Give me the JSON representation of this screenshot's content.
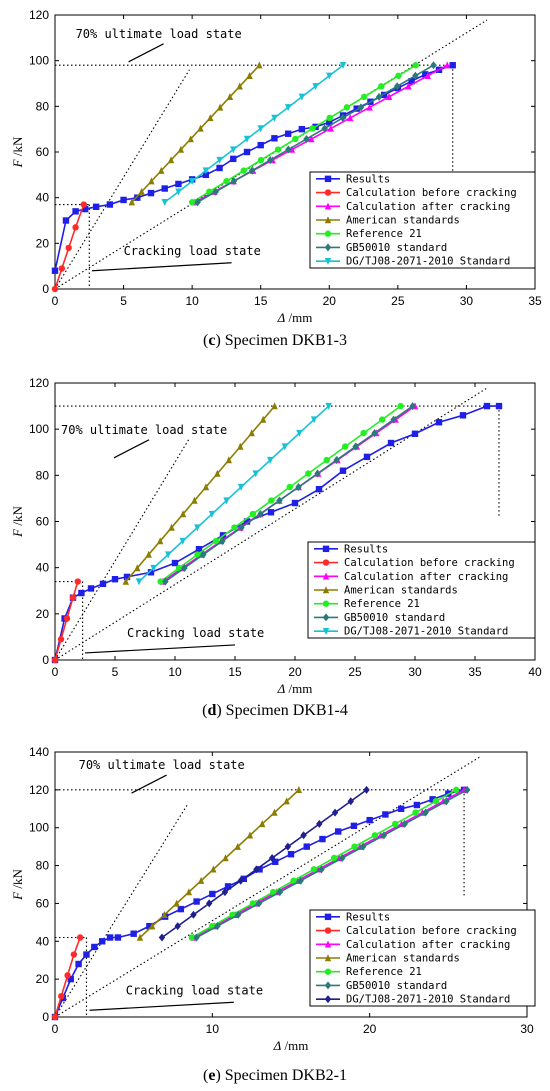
{
  "chart_data": [
    {
      "type": "line",
      "caption_letter": "c",
      "caption_text": " Specimen DKB1-3",
      "xlabel_sym": "Δ",
      "xlabel_unit": " /mm",
      "ylabel_sym": "F",
      "ylabel_unit": " /kN",
      "xlim": [
        0,
        35
      ],
      "ylim": [
        0,
        120
      ],
      "xticks": [
        0,
        5,
        10,
        15,
        20,
        25,
        30,
        35
      ],
      "yticks": [
        0,
        20,
        40,
        60,
        80,
        100,
        120
      ],
      "legend_position": "center-right",
      "annotations": [
        {
          "text": "70% ultimate load state",
          "x": 1.5,
          "y": 110
        },
        {
          "text": "Cracking load state",
          "x": 5,
          "y": 15
        }
      ],
      "series": [
        {
          "name": "Results",
          "color": "#1f1fe6",
          "marker": "square",
          "x": [
            0,
            0.8,
            1.5,
            2.2,
            3,
            4,
            5,
            6,
            7,
            8,
            9,
            10,
            11,
            12,
            13,
            14,
            15,
            16,
            17,
            18,
            19,
            20,
            21,
            22,
            23,
            24,
            25,
            26,
            27,
            28,
            29
          ],
          "y": [
            8,
            30,
            34,
            35,
            36,
            37,
            39,
            40,
            42,
            44,
            46,
            48,
            50,
            53,
            57,
            60,
            63,
            66,
            68,
            70,
            71,
            73,
            76,
            79,
            82,
            85,
            88,
            91,
            94,
            96,
            98
          ]
        },
        {
          "name": "Calculation before cracking",
          "color": "#ff2a2a",
          "marker": "circle",
          "x": [
            0,
            0.5,
            1,
            1.5,
            2.1
          ],
          "y": [
            0,
            9,
            18,
            27,
            37
          ]
        },
        {
          "name": "Calculation after cracking",
          "color": "#ff00ff",
          "marker": "triangle-up",
          "x": [
            10.2,
            28.6
          ],
          "y": [
            38,
            98
          ]
        },
        {
          "name": "American standards",
          "color": "#8b7d00",
          "marker": "triangle-up",
          "x": [
            5.6,
            14.9
          ],
          "y": [
            38,
            98
          ]
        },
        {
          "name": "Reference 21",
          "color": "#22ee22",
          "marker": "circle",
          "x": [
            10,
            26.3
          ],
          "y": [
            38,
            98
          ]
        },
        {
          "name": "GB50010 standard",
          "color": "#2a7a7a",
          "marker": "diamond",
          "x": [
            10.4,
            27.6
          ],
          "y": [
            38,
            98
          ]
        },
        {
          "name": "DG/TJ08-2071-2010 Standard",
          "color": "#17c2d6",
          "marker": "triangle-down",
          "x": [
            8,
            21
          ],
          "y": [
            38,
            98
          ]
        }
      ]
    },
    {
      "type": "line",
      "caption_letter": "d",
      "caption_text": " Specimen DKB1-4",
      "xlabel_sym": "Δ",
      "xlabel_unit": " /mm",
      "ylabel_sym": "F",
      "ylabel_unit": " /kN",
      "xlim": [
        0,
        40
      ],
      "ylim": [
        0,
        120
      ],
      "xticks": [
        0,
        5,
        10,
        15,
        20,
        25,
        30,
        35,
        40
      ],
      "yticks": [
        0,
        20,
        40,
        60,
        80,
        100,
        120
      ],
      "legend_position": "bottom-right",
      "annotations": [
        {
          "text": "70% ultimate load state",
          "x": 0.5,
          "y": 98
        },
        {
          "text": "Cracking load state",
          "x": 6,
          "y": 10
        }
      ],
      "series": [
        {
          "name": "Results",
          "color": "#1f1fe6",
          "marker": "square",
          "x": [
            0,
            0.8,
            1.5,
            2.2,
            3,
            4,
            5,
            6,
            8,
            10,
            12,
            14,
            16,
            18,
            20,
            22,
            24,
            26,
            28,
            30,
            32,
            34,
            36,
            37
          ],
          "y": [
            0,
            18,
            27,
            29,
            31,
            33,
            35,
            36,
            38,
            42,
            48,
            54,
            60,
            64,
            68,
            74,
            82,
            88,
            94,
            98,
            103,
            106,
            110,
            110
          ]
        },
        {
          "name": "Calculation before cracking",
          "color": "#ff2a2a",
          "marker": "circle",
          "x": [
            0,
            0.5,
            1,
            1.5,
            1.9
          ],
          "y": [
            0,
            9,
            18,
            27,
            34
          ]
        },
        {
          "name": "Calculation after cracking",
          "color": "#ff00ff",
          "marker": "triangle-up",
          "x": [
            9,
            30
          ],
          "y": [
            34,
            110
          ]
        },
        {
          "name": "American standards",
          "color": "#8b7d00",
          "marker": "triangle-up",
          "x": [
            5.9,
            18.3
          ],
          "y": [
            34,
            110
          ]
        },
        {
          "name": "Reference 21",
          "color": "#22ee22",
          "marker": "circle",
          "x": [
            8.8,
            28.8
          ],
          "y": [
            34,
            110
          ]
        },
        {
          "name": "GB50010 standard",
          "color": "#2a7a7a",
          "marker": "diamond",
          "x": [
            9.2,
            29.8
          ],
          "y": [
            34,
            110
          ]
        },
        {
          "name": "DG/TJ08-2071-2010 Standard",
          "color": "#17c2d6",
          "marker": "triangle-down",
          "x": [
            7,
            22.8
          ],
          "y": [
            34,
            110
          ]
        }
      ]
    },
    {
      "type": "line",
      "caption_letter": "e",
      "caption_text": " Specimen DKB2-1",
      "xlabel_sym": "Δ",
      "xlabel_unit": " /mm",
      "ylabel_sym": "F",
      "ylabel_unit": " /kN",
      "xlim": [
        0,
        30
      ],
      "ylim": [
        0,
        140
      ],
      "xticks": [
        0,
        10,
        20,
        30
      ],
      "yticks": [
        0,
        20,
        40,
        60,
        80,
        100,
        120,
        140
      ],
      "legend_position": "bottom-right",
      "annotations": [
        {
          "text": "70% ultimate load state",
          "x": 1.5,
          "y": 131
        },
        {
          "text": "Cracking load state",
          "x": 4.5,
          "y": 12
        }
      ],
      "series": [
        {
          "name": "Results",
          "color": "#1f1fe6",
          "marker": "square",
          "x": [
            0,
            0.5,
            1,
            1.5,
            2,
            2.5,
            3,
            3.5,
            4,
            5,
            6,
            7,
            8,
            9,
            10,
            11,
            12,
            13,
            14,
            15,
            16,
            17,
            18,
            19,
            20,
            21,
            22,
            23,
            24,
            25,
            26
          ],
          "y": [
            0,
            10,
            20,
            28,
            33,
            37,
            40,
            42,
            42,
            44,
            48,
            53,
            57,
            61,
            65,
            69,
            73,
            78,
            82,
            86,
            90,
            94,
            98,
            101,
            104,
            107,
            110,
            112,
            115,
            118,
            120
          ]
        },
        {
          "name": "Calculation before cracking",
          "color": "#ff2a2a",
          "marker": "circle",
          "x": [
            0,
            0.4,
            0.8,
            1.2,
            1.6
          ],
          "y": [
            0,
            11,
            22,
            33,
            42
          ]
        },
        {
          "name": "Calculation after cracking",
          "color": "#ff00ff",
          "marker": "triangle-up",
          "x": [
            8.8,
            26
          ],
          "y": [
            42,
            120
          ]
        },
        {
          "name": "American standards",
          "color": "#8b7d00",
          "marker": "triangle-up",
          "x": [
            5.4,
            15.5
          ],
          "y": [
            42,
            120
          ]
        },
        {
          "name": "Reference 21",
          "color": "#22ee22",
          "marker": "circle",
          "x": [
            8.7,
            25.5
          ],
          "y": [
            42,
            120
          ]
        },
        {
          "name": "GB50010 standard",
          "color": "#2a7a7a",
          "marker": "diamond",
          "x": [
            9,
            26.2
          ],
          "y": [
            42,
            120
          ]
        },
        {
          "name": "DG/TJ08-2071-2010 Standard",
          "color": "#1f1f8f",
          "marker": "diamond",
          "x": [
            6.8,
            19.8
          ],
          "y": [
            42,
            120
          ]
        }
      ]
    }
  ]
}
